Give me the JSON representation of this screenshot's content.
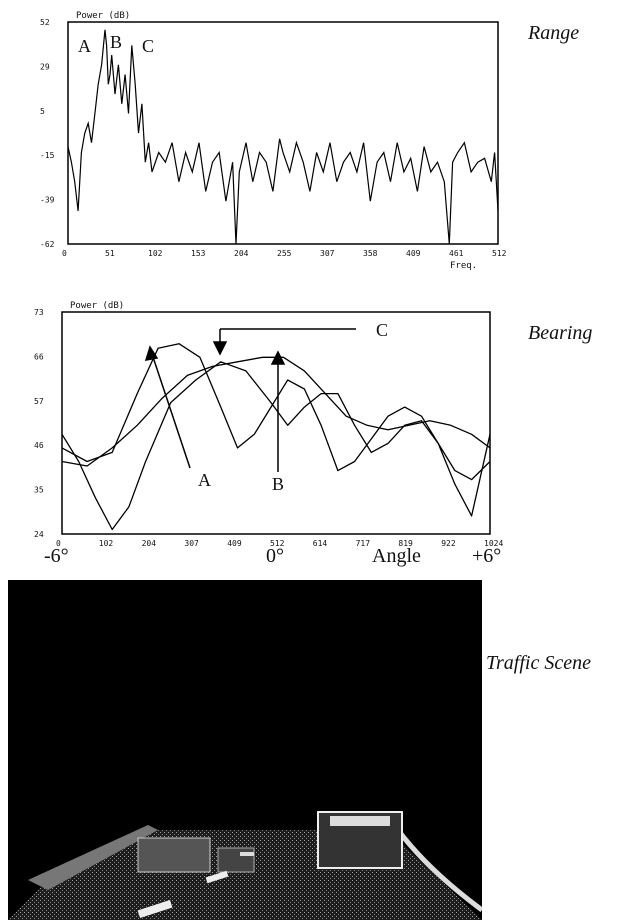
{
  "panels": {
    "range_label": "Range",
    "bearing_label": "Bearing",
    "traffic_label": "Traffic Scene"
  },
  "chart_data": [
    {
      "type": "line",
      "ylabel": "Power (dB)",
      "xlabel": "Freq.",
      "xlim": [
        0,
        512
      ],
      "ylim": [
        -62,
        52
      ],
      "xticks": [
        "0",
        "51",
        "102",
        "153",
        "204",
        "255",
        "307",
        "358",
        "409",
        "461",
        "512"
      ],
      "yticks": [
        "52",
        "29",
        "5",
        "-15",
        "-39",
        "-62"
      ],
      "grid": false,
      "annotations": [
        "A",
        "B",
        "C"
      ],
      "series": [
        {
          "x": [
            0,
            4,
            8,
            12,
            16,
            20,
            24,
            28,
            32,
            36,
            40,
            44,
            46,
            48,
            50,
            52,
            56,
            60,
            64,
            68,
            72,
            76,
            80,
            84,
            88,
            92,
            96,
            100,
            108,
            116,
            124,
            132,
            140,
            148,
            156,
            164,
            172,
            180,
            188,
            196,
            200,
            204,
            212,
            220,
            228,
            236,
            244,
            252,
            256,
            264,
            272,
            280,
            288,
            296,
            304,
            312,
            320,
            328,
            336,
            344,
            352,
            360,
            368,
            376,
            384,
            392,
            400,
            408,
            416,
            424,
            432,
            440,
            448,
            454,
            458,
            464,
            472,
            480,
            488,
            496,
            504,
            508,
            512
          ],
          "values": [
            -12,
            -20,
            -30,
            -45,
            -15,
            -5,
            0,
            -10,
            5,
            20,
            30,
            48,
            40,
            20,
            25,
            35,
            15,
            30,
            10,
            25,
            5,
            40,
            20,
            -5,
            10,
            -20,
            -10,
            -25,
            -15,
            -20,
            -10,
            -30,
            -15,
            -25,
            -10,
            -35,
            -20,
            -15,
            -40,
            -20,
            -62,
            -25,
            -10,
            -30,
            -15,
            -20,
            -35,
            -8,
            -15,
            -25,
            -10,
            -20,
            -35,
            -15,
            -25,
            -10,
            -30,
            -20,
            -15,
            -25,
            -10,
            -40,
            -20,
            -15,
            -30,
            -10,
            -25,
            -18,
            -35,
            -12,
            -25,
            -20,
            -30,
            -62,
            -20,
            -15,
            -10,
            -25,
            -20,
            -18,
            -30,
            -15,
            -45
          ]
        }
      ]
    },
    {
      "type": "line",
      "ylabel": "Power (dB)",
      "xlabel": "Angle",
      "xlim": [
        0,
        1024
      ],
      "ylim": [
        24,
        73
      ],
      "xticks": [
        "0",
        "102",
        "204",
        "307",
        "409",
        "512",
        "614",
        "717",
        "819",
        "922",
        "1024"
      ],
      "yticks": [
        "73",
        "66",
        "57",
        "46",
        "35",
        "24"
      ],
      "angle_labels": [
        "-6°",
        "0°",
        "+6°"
      ],
      "grid": false,
      "annotations": [
        "A",
        "B",
        "C"
      ],
      "series": [
        {
          "x": [
            0,
            60,
            120,
            180,
            230,
            280,
            330,
            380,
            420,
            460,
            500,
            540,
            580,
            620,
            660,
            700,
            740,
            780,
            820,
            860,
            900,
            940,
            980,
            1024
          ],
          "values": [
            43,
            40,
            42,
            55,
            65,
            66,
            63,
            52,
            43,
            46,
            52,
            58,
            56,
            48,
            38,
            40,
            45,
            50,
            52,
            50,
            44,
            38,
            36,
            40
          ]
        },
        {
          "x": [
            0,
            40,
            80,
            120,
            160,
            200,
            260,
            320,
            380,
            440,
            500,
            540,
            580,
            620,
            660,
            700,
            740,
            780,
            820,
            860,
            900,
            940,
            980,
            1024
          ],
          "values": [
            46,
            40,
            32,
            25,
            30,
            40,
            53,
            58,
            62,
            60,
            53,
            48,
            52,
            55,
            55,
            48,
            42,
            44,
            48,
            49,
            44,
            35,
            28,
            46
          ]
        },
        {
          "x": [
            0,
            60,
            120,
            180,
            240,
            300,
            360,
            420,
            480,
            530,
            580,
            630,
            680,
            730,
            780,
            830,
            880,
            930,
            980,
            1024
          ],
          "values": [
            40,
            39,
            43,
            48,
            54,
            59,
            61,
            62,
            63,
            63,
            60,
            55,
            50,
            48,
            47,
            48,
            49,
            48,
            46,
            43
          ]
        }
      ]
    }
  ]
}
